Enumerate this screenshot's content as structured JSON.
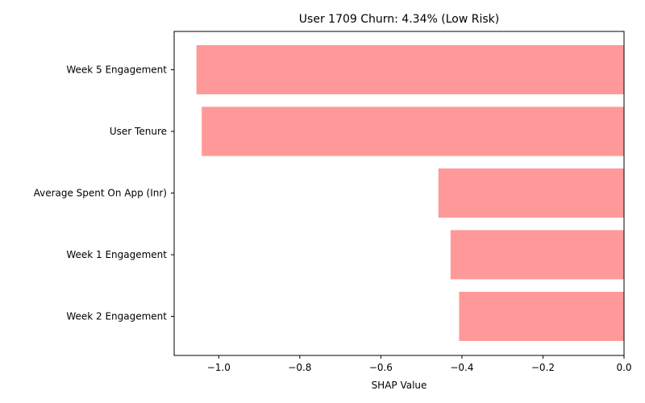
{
  "chart_data": {
    "type": "bar",
    "orientation": "horizontal",
    "title": "User 1709 Churn: 4.34% (Low Risk)",
    "xlabel": "SHAP Value",
    "ylabel": "",
    "categories": [
      "Week 5 Engagement",
      "User Tenure",
      "Average Spent On App (Inr)",
      "Week 1 Engagement",
      "Week 2 Engagement"
    ],
    "values": [
      -1.055,
      -1.042,
      -0.458,
      -0.428,
      -0.407
    ],
    "xlim": [
      -1.11,
      0.0
    ],
    "xticks": [
      -1.0,
      -0.8,
      -0.6,
      -0.4,
      -0.2,
      0.0
    ],
    "xtick_labels": [
      "−1.0",
      "−0.8",
      "−0.6",
      "−0.4",
      "−0.2",
      "0.0"
    ],
    "bar_color": "#ff9999",
    "grid": false,
    "legend": "none"
  }
}
